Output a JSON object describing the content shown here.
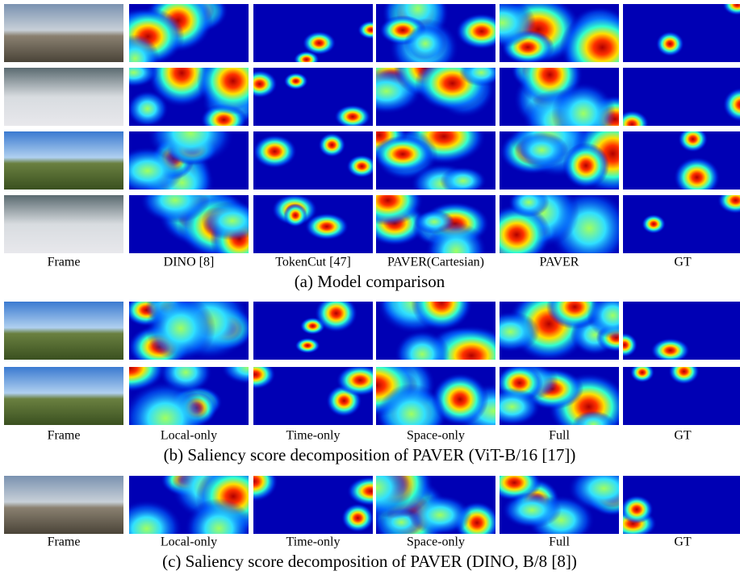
{
  "sections": [
    {
      "column_labels": [
        "Frame",
        "DINO [8]",
        "TokenCut [47]",
        "PAVER(Cartesian)",
        "PAVER",
        "GT"
      ],
      "caption": "(a) Model comparison"
    },
    {
      "column_labels": [
        "Frame",
        "Local-only",
        "Time-only",
        "Space-only",
        "Full",
        "GT"
      ],
      "caption": "(b) Saliency score decomposition of PAVER (ViT-B/16 [17])"
    },
    {
      "column_labels": [
        "Frame",
        "Local-only",
        "Time-only",
        "Space-only",
        "Full",
        "GT"
      ],
      "caption": "(c) Saliency score decomposition of PAVER (DINO, B/8 [8])"
    }
  ]
}
